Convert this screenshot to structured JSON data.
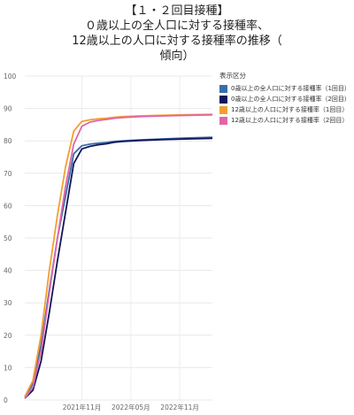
{
  "title_lines": [
    "【１・２回目接種】",
    "０歳以上の全人口に対する接種率、",
    "12歳以上の人口に対する接種率の推移（",
    "傾向）"
  ],
  "chart_data": {
    "type": "line",
    "title": "【１・２回目接種】０歳以上の全人口に対する接種率、12歳以上の人口に対する接種率の推移（傾向）",
    "ylim": [
      0,
      100
    ],
    "yticks": [
      0,
      10,
      20,
      30,
      40,
      50,
      60,
      70,
      80,
      90,
      100
    ],
    "xlim": [
      "2021-04",
      "2023-03"
    ],
    "xticks": [
      {
        "label": "2021年11月",
        "value": "2021-11"
      },
      {
        "label": "2022年05月",
        "value": "2022-05"
      },
      {
        "label": "2022年11月",
        "value": "2022-11"
      }
    ],
    "grid": true,
    "legend_title": "表示区分",
    "legend_position": "right",
    "series": [
      {
        "name": "0歳以上の全人口に対する接種率（1回目）",
        "color": "#3a6ea8",
        "points": [
          [
            "2021-04",
            1
          ],
          [
            "2021-05",
            5
          ],
          [
            "2021-06",
            17
          ],
          [
            "2021-07",
            34
          ],
          [
            "2021-08",
            50
          ],
          [
            "2021-09",
            63
          ],
          [
            "2021-10",
            76
          ],
          [
            "2021-11",
            78.5
          ],
          [
            "2021-12",
            79
          ],
          [
            "2022-01",
            79.3
          ],
          [
            "2022-02",
            79.5
          ],
          [
            "2022-03",
            79.8
          ],
          [
            "2022-04",
            80
          ],
          [
            "2022-06",
            80.3
          ],
          [
            "2022-09",
            80.6
          ],
          [
            "2022-12",
            80.9
          ],
          [
            "2023-03",
            81.1
          ]
        ]
      },
      {
        "name": "0歳以上の全人口に対する接種率（2回目）",
        "color": "#13155a",
        "points": [
          [
            "2021-04",
            0.5
          ],
          [
            "2021-05",
            3
          ],
          [
            "2021-06",
            12
          ],
          [
            "2021-07",
            27
          ],
          [
            "2021-08",
            43
          ],
          [
            "2021-09",
            58
          ],
          [
            "2021-10",
            73
          ],
          [
            "2021-11",
            77.5
          ],
          [
            "2021-12",
            78.3
          ],
          [
            "2022-01",
            78.8
          ],
          [
            "2022-02",
            79.1
          ],
          [
            "2022-03",
            79.6
          ],
          [
            "2022-04",
            79.8
          ],
          [
            "2022-06",
            80.1
          ],
          [
            "2022-09",
            80.4
          ],
          [
            "2022-12",
            80.6
          ],
          [
            "2023-03",
            80.8
          ]
        ]
      },
      {
        "name": "12歳以上の人口に対する接種率（1回目）",
        "color": "#f0a030",
        "points": [
          [
            "2021-04",
            1
          ],
          [
            "2021-05",
            6
          ],
          [
            "2021-06",
            20
          ],
          [
            "2021-07",
            40
          ],
          [
            "2021-08",
            57
          ],
          [
            "2021-09",
            72
          ],
          [
            "2021-10",
            83
          ],
          [
            "2021-11",
            86
          ],
          [
            "2021-12",
            86.5
          ],
          [
            "2022-01",
            86.8
          ],
          [
            "2022-02",
            87
          ],
          [
            "2022-03",
            87.3
          ],
          [
            "2022-04",
            87.5
          ],
          [
            "2022-06",
            87.7
          ],
          [
            "2022-09",
            87.9
          ],
          [
            "2022-12",
            88.1
          ],
          [
            "2023-03",
            88.2
          ]
        ]
      },
      {
        "name": "12歳以上の人口に対する接種率（2回目）",
        "color": "#e066a8",
        "points": [
          [
            "2021-04",
            0.5
          ],
          [
            "2021-05",
            4
          ],
          [
            "2021-06",
            15
          ],
          [
            "2021-07",
            33
          ],
          [
            "2021-08",
            50
          ],
          [
            "2021-09",
            66
          ],
          [
            "2021-10",
            79
          ],
          [
            "2021-11",
            84.5
          ],
          [
            "2021-12",
            85.8
          ],
          [
            "2022-01",
            86.3
          ],
          [
            "2022-02",
            86.6
          ],
          [
            "2022-03",
            87
          ],
          [
            "2022-04",
            87.2
          ],
          [
            "2022-06",
            87.5
          ],
          [
            "2022-09",
            87.7
          ],
          [
            "2022-12",
            87.9
          ],
          [
            "2023-03",
            88
          ]
        ]
      }
    ]
  }
}
